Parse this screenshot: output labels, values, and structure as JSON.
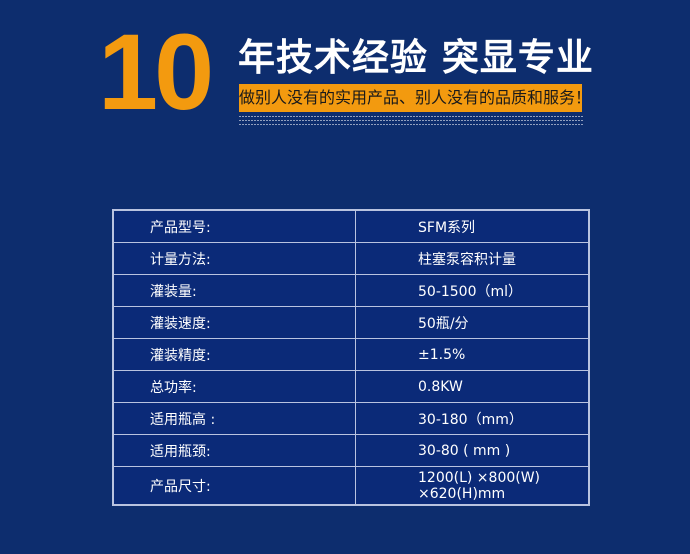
{
  "header": {
    "years": "10",
    "headline": "年技术经验 突显专业",
    "slogan": "做别人没有的实用产品、别人没有的品质和服务！"
  },
  "colors": {
    "background": "#0d2d6e",
    "accent": "#f39a0f",
    "table_bg": "#0b2a78"
  },
  "specs": [
    {
      "label": "产品型号:",
      "value": "SFM系列"
    },
    {
      "label": "计量方法:",
      "value": "柱塞泵容积计量"
    },
    {
      "label": "灌装量:",
      "value": "50-1500（ml）"
    },
    {
      "label": "灌装速度:",
      "value": "50瓶/分"
    },
    {
      "label": "灌装精度:",
      "value": "±1.5%"
    },
    {
      "label": "总功率:",
      "value": "0.8KW"
    },
    {
      "label": "适用瓶高 :",
      "value": "30-180（mm）"
    },
    {
      "label": "适用瓶颈:",
      "value": "30-80 ( mm )"
    },
    {
      "label": "产品尺寸:",
      "value": "1200(L) ×800(W) ×620(H)mm"
    }
  ]
}
